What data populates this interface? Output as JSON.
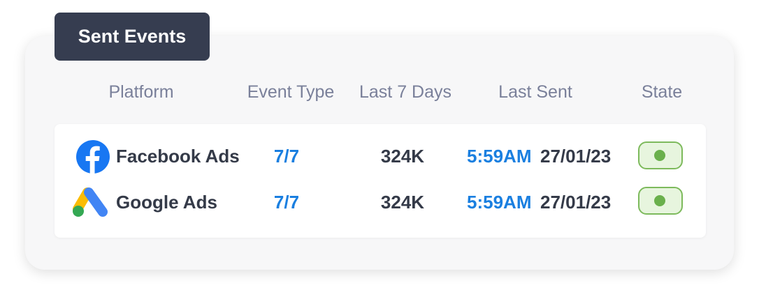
{
  "header": {
    "title": "Sent Events"
  },
  "table": {
    "columns": [
      "Platform",
      "Event Type",
      "Last 7 Days",
      "Last Sent",
      "State"
    ],
    "rows": [
      {
        "platform": "Facebook Ads",
        "event_type": "7/7",
        "last_7_days": "324K",
        "last_sent_time": "5:59AM",
        "last_sent_date": "27/01/23"
      },
      {
        "platform": "Google Ads",
        "event_type": "7/7",
        "last_7_days": "324K",
        "last_sent_time": "5:59AM",
        "last_sent_date": "27/01/23"
      }
    ]
  }
}
